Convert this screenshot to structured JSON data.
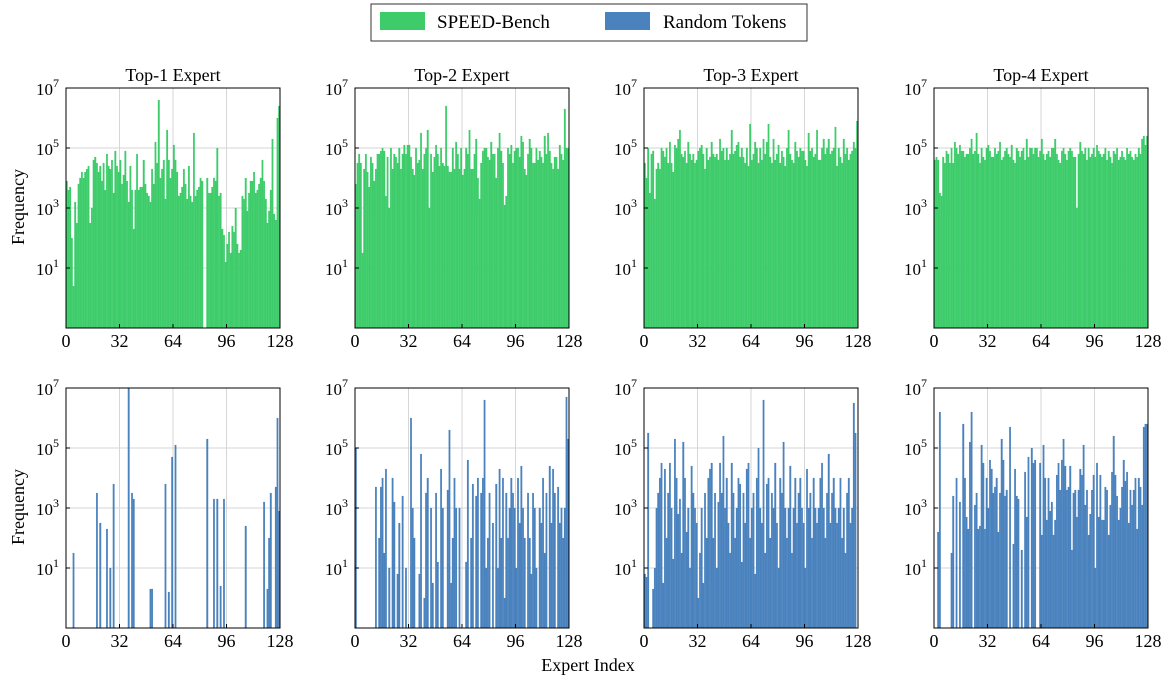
{
  "figure": {
    "xlabel": "Expert Index",
    "ylabel": "Frequency"
  },
  "legend": {
    "entries": [
      {
        "label": "SPEED-Bench",
        "color": "#3ecc6b"
      },
      {
        "label": "Random Tokens",
        "color": "#4a82be"
      }
    ],
    "placement": "top-center"
  },
  "chart_data": [
    {
      "type": "bar",
      "row": 1,
      "series": "SPEED-Bench",
      "color": "#3ecc6b",
      "title": "Top-1 Expert",
      "xlabel": "",
      "ylabel": "Frequency",
      "xlim": [
        0,
        128
      ],
      "y_scale": "log",
      "ylim_log10": [
        -1,
        7
      ],
      "xticks": [
        "0",
        "32",
        "64",
        "96",
        "128"
      ],
      "yticks": [
        {
          "exp": 1,
          "label": "10^1"
        },
        {
          "exp": 3,
          "label": "10^3"
        },
        {
          "exp": 5,
          "label": "10^5"
        },
        {
          "exp": 7,
          "label": "10^7"
        }
      ],
      "grid": true,
      "log10_values": [
        3.9,
        3.6,
        3.7,
        2.0,
        0.4,
        3.2,
        2.5,
        3.8,
        4.0,
        4.2,
        4.0,
        4.2,
        4.3,
        4.4,
        2.5,
        3.0,
        4.6,
        4.7,
        4.5,
        4.2,
        4.4,
        3.9,
        4.5,
        3.6,
        4.8,
        4.4,
        4.3,
        4.6,
        3.5,
        4.9,
        4.4,
        4.2,
        4.6,
        3.8,
        4.1,
        4.9,
        3.9,
        3.2,
        4.4,
        3.6,
        2.3,
        3.6,
        4.8,
        3.6,
        3.7,
        3.7,
        4.6,
        3.8,
        3.5,
        3.4,
        3.2,
        4.3,
        3.8,
        5.2,
        4.5,
        6.6,
        4.0,
        4.3,
        4.6,
        3.3,
        5.6,
        4.6,
        4.0,
        4.3,
        5.1,
        4.6,
        4.2,
        3.4,
        3.5,
        3.7,
        4.3,
        3.8,
        3.3,
        4.4,
        3.4,
        3.2,
        5.5,
        3.4,
        3.6,
        3.7,
        4.0,
        3.9,
        -1,
        -1,
        4.0,
        3.5,
        3.5,
        3.7,
        4.0,
        3.9,
        5.0,
        3.4,
        3.5,
        2.3,
        2.1,
        1.2,
        1.8,
        2.2,
        1.5,
        2.4,
        2.2,
        3.0,
        1.8,
        1.5,
        1.6,
        3.4,
        3.3,
        4.0,
        2.9,
        3.5,
        3.9,
        3.9,
        4.2,
        3.5,
        3.6,
        3.8,
        4.0,
        4.6,
        3.9,
        3.3,
        2.5,
        2.9,
        3.6,
        5.3,
        2.8,
        2.6,
        6.0,
        6.4
      ]
    },
    {
      "type": "bar",
      "row": 1,
      "series": "SPEED-Bench",
      "color": "#3ecc6b",
      "title": "Top-2 Expert",
      "xlabel": "",
      "ylabel": "",
      "xlim": [
        0,
        128
      ],
      "y_scale": "log",
      "ylim_log10": [
        -1,
        7
      ],
      "xticks": [
        "0",
        "32",
        "64",
        "96",
        "128"
      ],
      "yticks": [
        {
          "exp": 1,
          "label": "10^1"
        },
        {
          "exp": 3,
          "label": "10^3"
        },
        {
          "exp": 5,
          "label": "10^5"
        },
        {
          "exp": 7,
          "label": "10^7"
        }
      ],
      "grid": true,
      "log10_values": [
        3.8,
        4.5,
        4.8,
        4.5,
        1.5,
        4.3,
        4.8,
        4.2,
        3.7,
        4.7,
        4.5,
        3.9,
        4.3,
        4.8,
        4.8,
        4.9,
        5.0,
        4.9,
        3.4,
        4.7,
        3.0,
        5.0,
        4.3,
        4.8,
        4.7,
        4.5,
        5.0,
        4.3,
        4.8,
        5.1,
        4.8,
        5.1,
        5.1,
        4.7,
        4.3,
        4.1,
        5.0,
        4.5,
        4.6,
        5.5,
        4.3,
        4.8,
        5.0,
        5.6,
        3.0,
        4.8,
        4.2,
        4.7,
        5.1,
        4.8,
        4.4,
        5.0,
        4.5,
        4.4,
        6.4,
        4.4,
        4.2,
        4.2,
        5.0,
        4.3,
        5.2,
        4.8,
        4.3,
        5.0,
        4.1,
        4.3,
        5.0,
        4.8,
        5.6,
        4.3,
        4.3,
        4.8,
        5.3,
        4.0,
        3.3,
        4.5,
        4.9,
        5.0,
        5.0,
        4.7,
        4.6,
        5.2,
        4.8,
        4.8,
        4.0,
        5.0,
        5.5,
        4.9,
        4.5,
        3.1,
        3.4,
        5.0,
        4.8,
        5.1,
        4.5,
        4.9,
        5.0,
        5.0,
        4.7,
        5.4,
        5.2,
        4.3,
        4.1,
        4.8,
        5.3,
        5.0,
        4.5,
        4.5,
        5.0,
        4.6,
        4.9,
        4.7,
        4.5,
        5.4,
        4.8,
        5.5,
        4.9,
        4.5,
        4.3,
        4.7,
        4.7,
        4.3,
        5.1,
        4.8,
        4.6,
        6.3,
        5.0,
        5.0
      ]
    },
    {
      "type": "bar",
      "row": 1,
      "series": "SPEED-Bench",
      "color": "#3ecc6b",
      "title": "Top-3 Expert",
      "xlabel": "",
      "ylabel": "",
      "xlim": [
        0,
        128
      ],
      "y_scale": "log",
      "ylim_log10": [
        -1,
        7
      ],
      "xticks": [
        "0",
        "32",
        "64",
        "96",
        "128"
      ],
      "yticks": [
        {
          "exp": 1,
          "label": "10^1"
        },
        {
          "exp": 3,
          "label": "10^3"
        },
        {
          "exp": 5,
          "label": "10^5"
        },
        {
          "exp": 7,
          "label": "10^7"
        }
      ],
      "grid": true,
      "log10_values": [
        4.5,
        4.0,
        5.0,
        3.5,
        4.8,
        4.9,
        3.3,
        4.3,
        4.5,
        4.3,
        5.0,
        4.9,
        4.7,
        5.0,
        4.5,
        5.2,
        4.5,
        4.2,
        5.1,
        5.0,
        5.3,
        5.6,
        4.8,
        4.7,
        4.9,
        4.5,
        5.2,
        4.8,
        4.6,
        4.8,
        4.5,
        4.6,
        4.9,
        5.0,
        5.1,
        4.8,
        4.3,
        5.0,
        4.6,
        4.7,
        5.2,
        4.8,
        4.7,
        4.8,
        4.6,
        5.3,
        4.9,
        5.0,
        4.6,
        5.0,
        4.6,
        4.8,
        5.6,
        4.8,
        4.9,
        5.1,
        5.2,
        4.7,
        5.0,
        4.7,
        4.5,
        5.0,
        4.4,
        5.8,
        4.6,
        4.8,
        5.2,
        5.0,
        4.5,
        5.0,
        4.6,
        5.3,
        4.8,
        5.2,
        5.8,
        4.7,
        4.5,
        5.3,
        4.6,
        4.8,
        5.1,
        4.5,
        4.9,
        4.7,
        4.4,
        5.0,
        5.6,
        4.8,
        4.6,
        4.5,
        5.2,
        4.9,
        4.7,
        5.0,
        4.9,
        4.9,
        4.6,
        4.4,
        5.5,
        4.9,
        5.0,
        4.7,
        4.8,
        5.6,
        4.6,
        4.6,
        5.0,
        5.3,
        4.8,
        5.0,
        5.3,
        4.8,
        4.9,
        5.0,
        5.7,
        4.4,
        5.0,
        4.7,
        4.5,
        5.3,
        4.8,
        5.0,
        4.6,
        4.8,
        4.9,
        5.2,
        5.0,
        5.9
      ]
    },
    {
      "type": "bar",
      "row": 1,
      "series": "SPEED-Bench",
      "color": "#3ecc6b",
      "title": "Top-4 Expert",
      "xlabel": "",
      "ylabel": "",
      "xlim": [
        0,
        128
      ],
      "y_scale": "log",
      "ylim_log10": [
        -1,
        7
      ],
      "xticks": [
        "0",
        "32",
        "64",
        "96",
        "128"
      ],
      "yticks": [
        {
          "exp": 1,
          "label": "10^1"
        },
        {
          "exp": 3,
          "label": "10^3"
        },
        {
          "exp": 5,
          "label": "10^5"
        },
        {
          "exp": 7,
          "label": "10^7"
        }
      ],
      "grid": true,
      "log10_values": [
        4.6,
        4.7,
        4.6,
        3.5,
        3.4,
        4.7,
        4.5,
        4.9,
        4.8,
        4.5,
        5.0,
        4.5,
        5.2,
        5.0,
        4.8,
        5.1,
        4.9,
        4.9,
        4.7,
        4.8,
        4.8,
        5.0,
        5.3,
        4.8,
        4.9,
        5.5,
        4.8,
        4.5,
        5.0,
        4.7,
        4.6,
        5.0,
        5.1,
        4.9,
        4.7,
        4.7,
        5.0,
        4.8,
        4.9,
        5.2,
        4.6,
        4.7,
        4.9,
        5.0,
        4.8,
        4.7,
        5.1,
        4.6,
        4.5,
        5.0,
        4.9,
        4.7,
        4.9,
        5.0,
        4.6,
        5.3,
        4.7,
        5.0,
        5.0,
        4.8,
        5.0,
        5.0,
        4.7,
        4.9,
        5.3,
        4.8,
        4.6,
        4.8,
        4.9,
        4.7,
        5.0,
        5.0,
        5.3,
        4.8,
        4.6,
        4.5,
        4.9,
        5.0,
        4.8,
        4.6,
        4.9,
        5.0,
        4.9,
        4.7,
        4.7,
        3.0,
        4.8,
        5.2,
        4.9,
        4.8,
        5.0,
        4.6,
        5.0,
        4.7,
        4.8,
        5.0,
        4.7,
        5.1,
        4.9,
        4.8,
        4.7,
        4.8,
        5.0,
        4.6,
        4.9,
        4.7,
        4.5,
        4.9,
        4.8,
        5.0,
        4.6,
        4.7,
        4.9,
        4.7,
        4.6,
        5.0,
        4.8,
        4.9,
        4.7,
        4.6,
        4.8,
        4.7,
        5.0,
        4.8,
        5.3,
        5.4,
        5.1,
        5.4
      ]
    },
    {
      "type": "bar",
      "row": 2,
      "series": "Random Tokens",
      "color": "#4a82be",
      "title": "",
      "xlabel": "",
      "ylabel": "Frequency",
      "xlim": [
        0,
        128
      ],
      "y_scale": "log",
      "ylim_log10": [
        -1,
        7
      ],
      "xticks": [
        "0",
        "32",
        "64",
        "96",
        "128"
      ],
      "yticks": [
        {
          "exp": 1,
          "label": "10^1"
        },
        {
          "exp": 3,
          "label": "10^3"
        },
        {
          "exp": 5,
          "label": "10^5"
        },
        {
          "exp": 7,
          "label": "10^7"
        }
      ],
      "grid": true,
      "log10_values": [
        -1,
        -1,
        -1,
        -1,
        1.5,
        -1,
        -1,
        -1,
        -1,
        -1,
        -1,
        -1,
        -1,
        -1,
        -1,
        -1,
        -1,
        -1,
        3.5,
        -1,
        2.5,
        -1,
        -1,
        -1,
        2.3,
        -1,
        1.0,
        -1,
        3.8,
        -1,
        -1,
        -1,
        -1,
        -1,
        -1,
        -1,
        -1,
        7.0,
        -1,
        3.5,
        3.3,
        -1,
        -1,
        -1,
        -1,
        -1,
        -1,
        -1,
        -1,
        -1,
        0.3,
        0.3,
        -1,
        -1,
        -1,
        -1,
        -1,
        -1,
        -1,
        3.8,
        -1,
        0.2,
        -1,
        4.7,
        -1,
        5.1,
        -1,
        -1,
        -1,
        -1,
        -1,
        -1,
        -1,
        -1,
        -1,
        -1,
        -1,
        -1,
        -1,
        -1,
        -1,
        -1,
        -1,
        -1,
        5.3,
        -1,
        -1,
        -1,
        3.3,
        -1,
        3.3,
        -1,
        0.4,
        -1,
        3.3,
        -1,
        -1,
        -1,
        -1,
        -1,
        -1,
        -1,
        -1,
        -1,
        -1,
        -1,
        -1,
        2.4,
        -1,
        -1,
        -1,
        -1,
        -1,
        -1,
        -1,
        -1,
        -1,
        -1,
        3.2,
        -1,
        0.3,
        2.0,
        3.5,
        -1,
        -1,
        3.7,
        6.0,
        2.9
      ]
    },
    {
      "type": "bar",
      "row": 2,
      "series": "Random Tokens",
      "color": "#4a82be",
      "title": "",
      "xlabel": "",
      "ylabel": "",
      "xlim": [
        0,
        128
      ],
      "y_scale": "log",
      "ylim_log10": [
        -1,
        7
      ],
      "xticks": [
        "0",
        "32",
        "64",
        "96",
        "128"
      ],
      "yticks": [
        {
          "exp": 1,
          "label": "10^1"
        },
        {
          "exp": 3,
          "label": "10^3"
        },
        {
          "exp": 5,
          "label": "10^5"
        },
        {
          "exp": 7,
          "label": "10^7"
        }
      ],
      "grid": true,
      "log10_values": [
        5.0,
        -1,
        -1,
        -1,
        -1,
        -1,
        -1,
        -1,
        -1,
        -1,
        -1,
        -1,
        3.7,
        -1,
        2.0,
        3.7,
        4.0,
        1.5,
        4.3,
        -1,
        1.0,
        -1,
        4.0,
        3.2,
        -1,
        0.8,
        2.5,
        -1,
        3.4,
        -1,
        1.0,
        -1,
        -1,
        6.0,
        3.0,
        2.0,
        -1,
        -1,
        0.8,
        4.8,
        -1,
        0.0,
        3.5,
        4.0,
        -1,
        3.0,
        0.5,
        -1,
        3.5,
        1.2,
        -1,
        4.3,
        3.0,
        -1,
        -1,
        3.6,
        5.6,
        0.5,
        2.0,
        4.0,
        3.0,
        -1,
        3.0,
        -1,
        -1,
        -1,
        1.2,
        4.6,
        -1,
        2.0,
        3.8,
        -1,
        3.4,
        4.0,
        -1,
        3.5,
        4.0,
        6.6,
        1.0,
        2.0,
        3.5,
        -1,
        2.5,
        -1,
        3.8,
        1.0,
        4.3,
        2.0,
        4.0,
        0.0,
        3.5,
        2.0,
        3.0,
        4.0,
        3.5,
        3.0,
        1.0,
        4.0,
        2.5,
        4.4,
        3.0,
        2.0,
        -1,
        3.5,
        2.0,
        0.8,
        3.5,
        3.0,
        1.0,
        -1,
        3.0,
        2.5,
        4.0,
        1.5,
        3.5,
        -1,
        4.4,
        2.5,
        4.3,
        3.5,
        -1,
        3.7,
        2.5,
        3.0,
        2.0,
        3.0,
        6.7,
        5.3
      ]
    },
    {
      "type": "bar",
      "row": 2,
      "series": "Random Tokens",
      "color": "#4a82be",
      "title": "",
      "xlabel": "",
      "ylabel": "",
      "xlim": [
        0,
        128
      ],
      "y_scale": "log",
      "ylim_log10": [
        -1,
        7
      ],
      "xticks": [
        "0",
        "32",
        "64",
        "96",
        "128"
      ],
      "yticks": [
        {
          "exp": 1,
          "label": "10^1"
        },
        {
          "exp": 3,
          "label": "10^3"
        },
        {
          "exp": 5,
          "label": "10^5"
        },
        {
          "exp": 7,
          "label": "10^7"
        }
      ],
      "grid": true,
      "log10_values": [
        0.8,
        0.7,
        5.5,
        -1,
        -1,
        0.3,
        1.0,
        3.0,
        3.5,
        4.0,
        4.5,
        0.5,
        4.3,
        2.0,
        3.5,
        4.5,
        3.0,
        1.3,
        5.3,
        4.0,
        2.8,
        3.3,
        1.5,
        5.2,
        4.0,
        2.2,
        3.0,
        1.0,
        4.4,
        3.5,
        3.0,
        2.5,
        0.0,
        1.5,
        3.0,
        0.5,
        3.5,
        2.0,
        4.0,
        4.3,
        4.5,
        2.0,
        3.5,
        1.0,
        3.2,
        4.5,
        3.5,
        5.4,
        3.0,
        4.0,
        2.5,
        1.5,
        4.5,
        3.5,
        2.0,
        3.0,
        4.0,
        3.8,
        1.2,
        3.5,
        2.5,
        4.3,
        4.5,
        2.0,
        3.0,
        3.5,
        0.8,
        4.0,
        5.0,
        3.0,
        2.5,
        6.6,
        1.5,
        3.8,
        4.0,
        2.0,
        3.5,
        3.0,
        4.5,
        2.5,
        1.0,
        4.0,
        3.5,
        5.2,
        3.0,
        2.0,
        3.0,
        4.4,
        1.5,
        3.0,
        4.0,
        2.5,
        3.5,
        4.0,
        3.0,
        2.5,
        1.0,
        4.3,
        3.0,
        3.5,
        2.0,
        4.0,
        3.0,
        2.5,
        3.0,
        4.0,
        4.5,
        3.0,
        2.0,
        3.5,
        4.8,
        2.5,
        3.5,
        4.0,
        3.0,
        2.5,
        3.0,
        4.0,
        2.0,
        3.0,
        1.5,
        3.5,
        4.0,
        2.5,
        3.0,
        6.5,
        5.5,
        -1
      ]
    },
    {
      "type": "bar",
      "row": 2,
      "series": "Random Tokens",
      "color": "#4a82be",
      "title": "",
      "xlabel": "",
      "ylabel": "",
      "xlim": [
        0,
        128
      ],
      "y_scale": "log",
      "ylim_log10": [
        -1,
        7
      ],
      "xticks": [
        "0",
        "32",
        "64",
        "96",
        "128"
      ],
      "yticks": [
        {
          "exp": 1,
          "label": "10^1"
        },
        {
          "exp": 3,
          "label": "10^3"
        },
        {
          "exp": 5,
          "label": "10^5"
        },
        {
          "exp": 7,
          "label": "10^7"
        }
      ],
      "grid": true,
      "log10_values": [
        -1,
        -1,
        2.2,
        6.2,
        -1,
        -1,
        -1,
        -1,
        -1,
        -1,
        1.5,
        3.4,
        -1,
        4.0,
        -1,
        3.2,
        -1,
        5.8,
        4.0,
        2.7,
        2.3,
        5.2,
        6.2,
        -1,
        3.1,
        3.5,
        2.3,
        2.4,
        5.1,
        4.5,
        2.3,
        4.0,
        3.0,
        4.6,
        4.3,
        3.5,
        3.7,
        4.0,
        2.2,
        3.5,
        5.3,
        4.6,
        3.4,
        3.6,
        -1,
        5.7,
        -1,
        1.8,
        4.3,
        3.4,
        3.3,
        -1,
        1.6,
        -1,
        4.2,
        2.7,
        4.7,
        -1,
        5.0,
        4.5,
        4.6,
        -1,
        -1,
        4.5,
        2.1,
        5.1,
        4.0,
        2.6,
        4.0,
        2.9,
        3.2,
        2.1,
        2.6,
        4.1,
        4.5,
        3.6,
        4.6,
        5.3,
        4.4,
        3.6,
        3.7,
        4.4,
        1.6,
        3.5,
        3.6,
        2.7,
        3.6,
        4.3,
        4.1,
        5.1,
        3.1,
        3.6,
        2.1,
        2.8,
        3.6,
        4.1,
        1.0,
        4.5,
        2.7,
        4.1,
        2.6,
        2.6,
        3.7,
        3.6,
        2.1,
        3.1,
        4.2,
        5.4,
        4.1,
        3.4,
        2.6,
        3.0,
        3.7,
        4.6,
        3.9,
        4.2,
        2.5,
        3.6,
        3.1,
        3.6,
        4.0,
        2.3,
        4.0,
        3.7,
        3.1,
        5.7,
        5.8,
        5.8
      ]
    }
  ]
}
